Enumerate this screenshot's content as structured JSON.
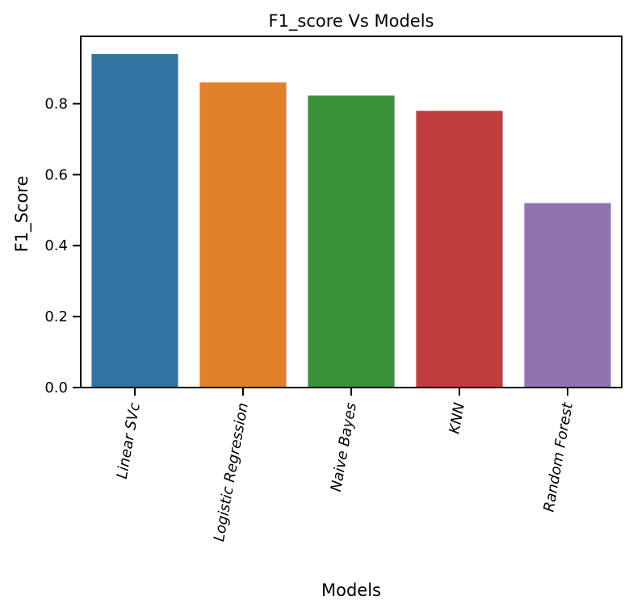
{
  "chart_data": {
    "type": "bar",
    "title": "F1_score Vs Models",
    "xlabel": "Models",
    "ylabel": "F1_Score",
    "categories": [
      "Linear SVc",
      "Logistic Regression",
      "Naive Bayes",
      "KNN",
      "Random Forest"
    ],
    "values": [
      0.94,
      0.86,
      0.823,
      0.78,
      0.52
    ],
    "colors": [
      "#3274a1",
      "#e1812c",
      "#3a923a",
      "#c03d3e",
      "#9372b2"
    ],
    "yticks": [
      "0.0",
      "0.2",
      "0.4",
      "0.6",
      "0.8"
    ],
    "ylim": [
      0,
      0.99
    ],
    "grid": false,
    "legend": "none"
  }
}
